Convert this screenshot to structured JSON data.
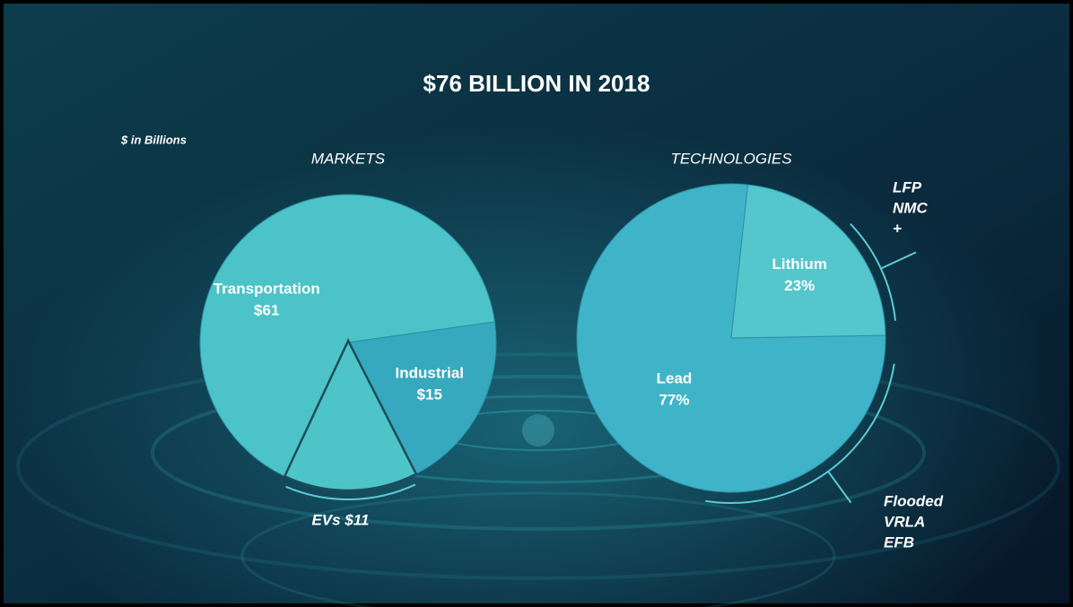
{
  "title": "$76 BILLION IN 2018",
  "unit_note": "$ in Billions",
  "chart_data": [
    {
      "type": "pie",
      "subtitle": "MARKETS",
      "categories": [
        "Transportation",
        "Industrial"
      ],
      "values": [
        61,
        15
      ],
      "value_labels": [
        "$61",
        "$15"
      ],
      "colors": [
        "#4cc3c8",
        "#37a9be"
      ],
      "sub_slice": {
        "label": "EVs $11",
        "value": 11,
        "color": "#4dc4c8"
      }
    },
    {
      "type": "pie",
      "subtitle": "TECHNOLOGIES",
      "categories": [
        "Lead",
        "Lithium"
      ],
      "values": [
        77,
        23
      ],
      "value_labels": [
        "77%",
        "23%"
      ],
      "colors": [
        "#3fb4c8",
        "#55c6cc"
      ],
      "subtypes": [
        [
          "Flooded",
          "VRLA",
          "EFB"
        ],
        [
          "LFP",
          "NMC",
          "+"
        ]
      ]
    }
  ]
}
